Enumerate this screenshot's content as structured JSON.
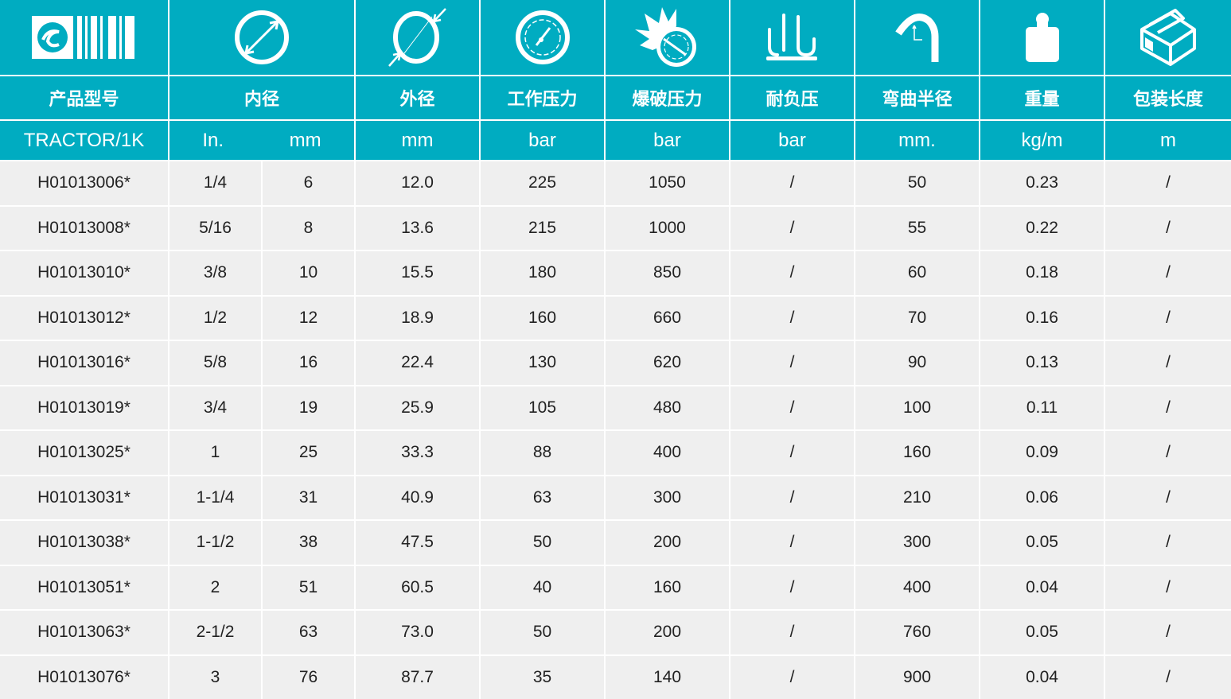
{
  "colors": {
    "header_bg": "#00acc1",
    "row_bg": "#efefef"
  },
  "icons": [
    "brand-logo",
    "inner-diameter-icon",
    "outer-diameter-icon",
    "working-pressure-gauge-icon",
    "burst-pressure-icon",
    "vacuum-icon",
    "bend-radius-icon",
    "weight-icon",
    "package-box-icon"
  ],
  "headers": [
    "产品型号",
    "内径",
    "外径",
    "工作压力",
    "爆破压力",
    "耐负压",
    "弯曲半径",
    "重量",
    "包装长度"
  ],
  "units": {
    "model": "TRACTOR/1K",
    "id_in": "In.",
    "id_mm": "mm",
    "od": "mm",
    "wp": "bar",
    "bp": "bar",
    "vac": "bar",
    "br": "mm.",
    "wt": "kg/m",
    "len": "m"
  },
  "rows": [
    [
      "H01013006*",
      "1/4",
      "6",
      "12.0",
      "225",
      "1050",
      "/",
      "50",
      "0.23",
      "/"
    ],
    [
      "H01013008*",
      "5/16",
      "8",
      "13.6",
      "215",
      "1000",
      "/",
      "55",
      "0.22",
      "/"
    ],
    [
      "H01013010*",
      "3/8",
      "10",
      "15.5",
      "180",
      "850",
      "/",
      "60",
      "0.18",
      "/"
    ],
    [
      "H01013012*",
      "1/2",
      "12",
      "18.9",
      "160",
      "660",
      "/",
      "70",
      "0.16",
      "/"
    ],
    [
      "H01013016*",
      "5/8",
      "16",
      "22.4",
      "130",
      "620",
      "/",
      "90",
      "0.13",
      "/"
    ],
    [
      "H01013019*",
      "3/4",
      "19",
      "25.9",
      "105",
      "480",
      "/",
      "100",
      "0.11",
      "/"
    ],
    [
      "H01013025*",
      "1",
      "25",
      "33.3",
      "88",
      "400",
      "/",
      "160",
      "0.09",
      "/"
    ],
    [
      "H01013031*",
      "1-1/4",
      "31",
      "40.9",
      "63",
      "300",
      "/",
      "210",
      "0.06",
      "/"
    ],
    [
      "H01013038*",
      "1-1/2",
      "38",
      "47.5",
      "50",
      "200",
      "/",
      "300",
      "0.05",
      "/"
    ],
    [
      "H01013051*",
      "2",
      "51",
      "60.5",
      "40",
      "160",
      "/",
      "400",
      "0.04",
      "/"
    ],
    [
      "H01013063*",
      "2-1/2",
      "63",
      "73.0",
      "50",
      "200",
      "/",
      "760",
      "0.05",
      "/"
    ],
    [
      "H01013076*",
      "3",
      "76",
      "87.7",
      "35",
      "140",
      "/",
      "900",
      "0.04",
      "/"
    ]
  ]
}
